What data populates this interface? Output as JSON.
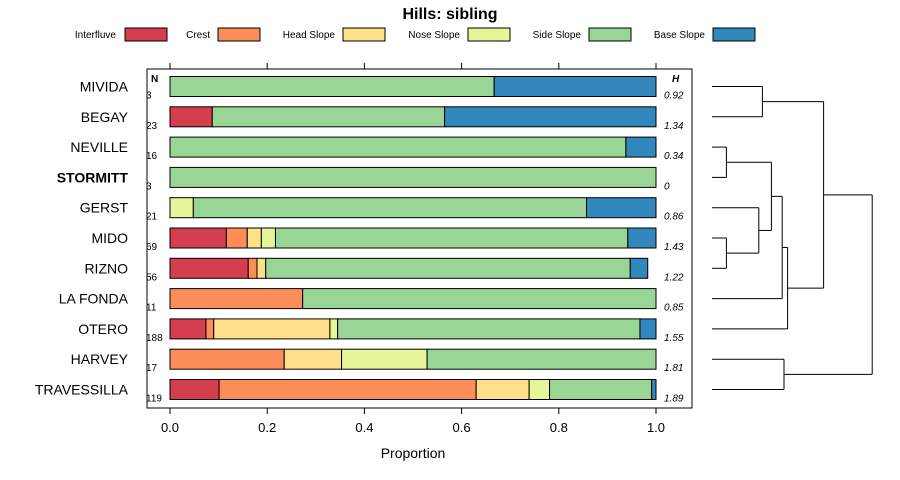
{
  "chart_data": {
    "type": "bar",
    "stacked": true,
    "orientation": "horizontal",
    "title": "Hills: sibling",
    "xlabel": "Proportion",
    "xlim": [
      0,
      1
    ],
    "xticks": [
      "0.0",
      "0.2",
      "0.4",
      "0.6",
      "0.8",
      "1.0"
    ],
    "n_header": "N",
    "h_header": "H",
    "categories": [
      "MIVIDA",
      "BEGAY",
      "NEVILLE",
      "STORMITT",
      "GERST",
      "MIDO",
      "RIZNO",
      "LA FONDA",
      "OTERO",
      "HARVEY",
      "TRAVESSILLA"
    ],
    "highlight": "STORMITT",
    "N": [
      "3",
      "23",
      "16",
      "3",
      "21",
      "69",
      "56",
      "11",
      "188",
      "17",
      "119"
    ],
    "H": [
      "0.92",
      "1.34",
      "0.34",
      "0",
      "0.86",
      "1.43",
      "1.22",
      "0.85",
      "1.55",
      "1.81",
      "1.89"
    ],
    "series": [
      {
        "name": "Interfluve",
        "color": "#d53e4f",
        "values": [
          0,
          0.087,
          0,
          0,
          0,
          0.116,
          0.161,
          0,
          0.074,
          0,
          0.101
        ]
      },
      {
        "name": "Crest",
        "color": "#fc8d59",
        "values": [
          0,
          0,
          0,
          0,
          0,
          0.043,
          0.018,
          0.273,
          0.016,
          0.235,
          0.529
        ]
      },
      {
        "name": "Head Slope",
        "color": "#fee08b",
        "values": [
          0,
          0,
          0,
          0,
          0,
          0.029,
          0.018,
          0,
          0.239,
          0.118,
          0.109
        ]
      },
      {
        "name": "Nose Slope",
        "color": "#e6f598",
        "values": [
          0,
          0,
          0,
          0,
          0.048,
          0.029,
          0,
          0,
          0.016,
          0.176,
          0.042
        ]
      },
      {
        "name": "Side Slope",
        "color": "#99d594",
        "values": [
          0.667,
          0.478,
          0.938,
          1.0,
          0.809,
          0.725,
          0.75,
          0.727,
          0.622,
          0.471,
          0.21
        ]
      },
      {
        "name": "Base Slope",
        "color": "#3288bd",
        "values": [
          0.333,
          0.435,
          0.062,
          0,
          0.143,
          0.058,
          0.036,
          0,
          0.033,
          0,
          0.009
        ]
      }
    ],
    "dendrogram": {
      "merges": [
        {
          "a": 0,
          "b": 1,
          "height": 0.28
        },
        {
          "a": 2,
          "b": 3,
          "height": 0.08
        },
        {
          "a": 5,
          "b": 6,
          "height": 0.08
        },
        {
          "a": 4,
          "b": "m2",
          "height": 0.26
        },
        {
          "a": "m1",
          "b": "m3",
          "height": 0.33
        },
        {
          "a": "m4",
          "b": 7,
          "height": 0.39
        },
        {
          "a": "m5",
          "b": 8,
          "height": 0.42
        },
        {
          "a": 9,
          "b": 10,
          "height": 0.4
        },
        {
          "a": "m0",
          "b": "m6",
          "height": 0.62
        },
        {
          "a": "m8",
          "b": "m7",
          "height": 0.89
        }
      ]
    }
  }
}
